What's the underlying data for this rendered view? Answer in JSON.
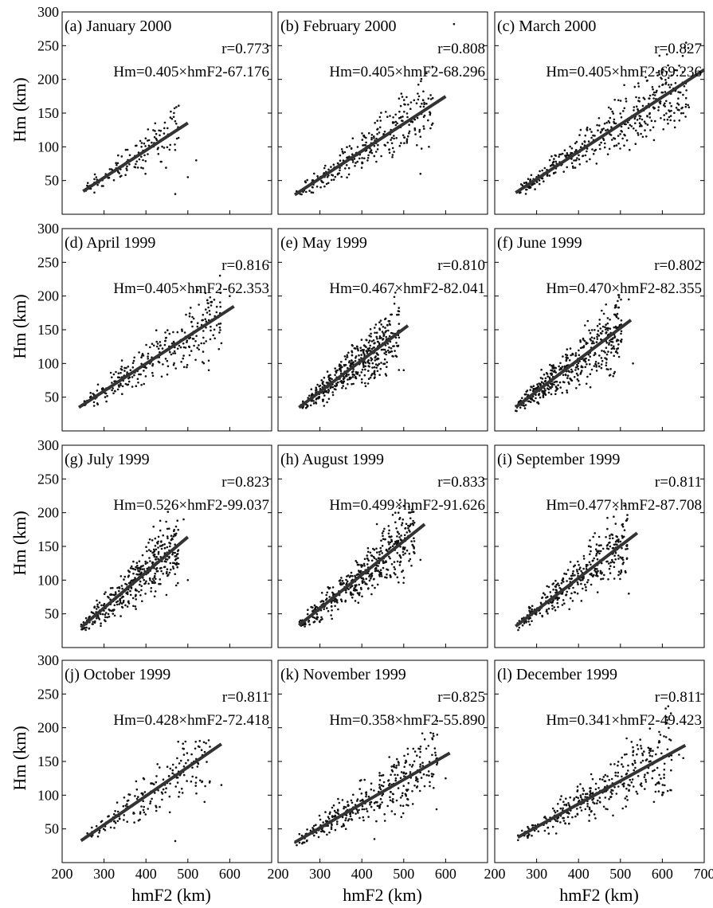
{
  "figure": {
    "x_axis_label": "hmF2 (km)",
    "y_axis_label": "Hm (km)"
  },
  "chart_data": [
    {
      "type": "scatter",
      "title": "(a) January 2000",
      "r_label": "r=0.773",
      "fit_label": "Hm=0.405×hmF2-67.176",
      "slope": 0.405,
      "intercept": -67.176,
      "fit_range": [
        250,
        500
      ],
      "n_points": 140,
      "spread": 14,
      "seed": 11,
      "outliers": [
        [
          520,
          80
        ],
        [
          470,
          30
        ],
        [
          500,
          55
        ]
      ],
      "xlim": [
        200,
        700
      ],
      "xticks": [
        200,
        300,
        400,
        500,
        600
      ],
      "ylim": [
        0,
        300
      ],
      "yticks": [
        50,
        100,
        150,
        200,
        250,
        300
      ]
    },
    {
      "type": "scatter",
      "title": "(b) February 2000",
      "r_label": "r=0.808",
      "fit_label": "Hm=0.405×hmF2-68.296",
      "slope": 0.405,
      "intercept": -68.296,
      "fit_range": [
        240,
        600
      ],
      "n_points": 300,
      "spread": 18,
      "seed": 23,
      "outliers": [
        [
          620,
          282
        ],
        [
          540,
          60
        ],
        [
          560,
          100
        ]
      ],
      "xlim": [
        200,
        700
      ],
      "xticks": [
        200,
        300,
        400,
        500,
        600
      ],
      "ylim": [
        0,
        300
      ],
      "yticks": [
        50,
        100,
        150,
        200,
        250,
        300
      ]
    },
    {
      "type": "scatter",
      "title": "(c) March 2000",
      "r_label": "r=0.827",
      "fit_label": "Hm=0.405×hmF2-69.236",
      "slope": 0.405,
      "intercept": -69.236,
      "fit_range": [
        250,
        700
      ],
      "n_points": 400,
      "spread": 20,
      "seed": 37,
      "outliers": [
        [
          600,
          210
        ],
        [
          650,
          150
        ],
        [
          580,
          110
        ]
      ],
      "xlim": [
        200,
        700
      ],
      "xticks": [
        200,
        300,
        400,
        500,
        600,
        700
      ],
      "ylim": [
        0,
        300
      ],
      "yticks": [
        50,
        100,
        150,
        200,
        250,
        300
      ]
    },
    {
      "type": "scatter",
      "title": "(d) April 1999",
      "r_label": "r=0.816",
      "fit_label": "Hm=0.405×hmF2-62.353",
      "slope": 0.405,
      "intercept": -62.353,
      "fit_range": [
        240,
        610
      ],
      "n_points": 300,
      "spread": 18,
      "seed": 41,
      "outliers": [
        [
          600,
          200
        ],
        [
          580,
          130
        ],
        [
          550,
          90
        ]
      ],
      "xlim": [
        200,
        700
      ],
      "xticks": [
        200,
        300,
        400,
        500,
        600
      ],
      "ylim": [
        0,
        300
      ],
      "yticks": [
        50,
        100,
        150,
        200,
        250,
        300
      ]
    },
    {
      "type": "scatter",
      "title": "(e) May 1999",
      "r_label": "r=0.810",
      "fit_label": "Hm=0.467×hmF2-82.041",
      "slope": 0.467,
      "intercept": -82.041,
      "fit_range": [
        250,
        510
      ],
      "n_points": 450,
      "spread": 18,
      "seed": 53,
      "outliers": [
        [
          480,
          205
        ],
        [
          500,
          90
        ]
      ],
      "xlim": [
        200,
        700
      ],
      "xticks": [
        200,
        300,
        400,
        500,
        600
      ],
      "ylim": [
        0,
        300
      ],
      "yticks": [
        50,
        100,
        150,
        200,
        250,
        300
      ]
    },
    {
      "type": "scatter",
      "title": "(f) June 1999",
      "r_label": "r=0.802",
      "fit_label": "Hm=0.470×hmF2-82.355",
      "slope": 0.47,
      "intercept": -82.355,
      "fit_range": [
        250,
        525
      ],
      "n_points": 450,
      "spread": 20,
      "seed": 67,
      "outliers": [
        [
          520,
          195
        ],
        [
          530,
          100
        ]
      ],
      "xlim": [
        200,
        700
      ],
      "xticks": [
        200,
        300,
        400,
        500,
        600
      ],
      "ylim": [
        0,
        300
      ],
      "yticks": [
        50,
        100,
        150,
        200,
        250,
        300
      ]
    },
    {
      "type": "scatter",
      "title": "(g) July 1999",
      "r_label": "r=0.823",
      "fit_label": "Hm=0.526×hmF2-99.037",
      "slope": 0.526,
      "intercept": -99.037,
      "fit_range": [
        245,
        500
      ],
      "n_points": 400,
      "spread": 20,
      "seed": 71,
      "outliers": [
        [
          490,
          190
        ],
        [
          500,
          100
        ]
      ],
      "xlim": [
        200,
        700
      ],
      "xticks": [
        200,
        300,
        400,
        500,
        600
      ],
      "ylim": [
        0,
        300
      ],
      "yticks": [
        50,
        100,
        150,
        200,
        250,
        300
      ]
    },
    {
      "type": "scatter",
      "title": "(h) August 1999",
      "r_label": "r=0.833",
      "fit_label": "Hm=0.499×hmF2-91.626",
      "slope": 0.499,
      "intercept": -91.626,
      "fit_range": [
        250,
        550
      ],
      "n_points": 450,
      "spread": 20,
      "seed": 83,
      "outliers": [
        [
          500,
          210
        ],
        [
          540,
          130
        ],
        [
          480,
          200
        ]
      ],
      "xlim": [
        200,
        700
      ],
      "xticks": [
        200,
        300,
        400,
        500,
        600
      ],
      "ylim": [
        0,
        300
      ],
      "yticks": [
        50,
        100,
        150,
        200,
        250,
        300
      ]
    },
    {
      "type": "scatter",
      "title": "(i) September 1999",
      "r_label": "r=0.811",
      "fit_label": "Hm=0.477×hmF2-87.708",
      "slope": 0.477,
      "intercept": -87.708,
      "fit_range": [
        250,
        540
      ],
      "n_points": 350,
      "spread": 18,
      "seed": 97,
      "outliers": [
        [
          490,
          205
        ],
        [
          520,
          80
        ]
      ],
      "xlim": [
        200,
        700
      ],
      "xticks": [
        200,
        300,
        400,
        500,
        600
      ],
      "ylim": [
        0,
        300
      ],
      "yticks": [
        50,
        100,
        150,
        200,
        250,
        300
      ]
    },
    {
      "type": "scatter",
      "title": "(j) October 1999",
      "r_label": "r=0.811",
      "fit_label": "Hm=0.428×hmF2-72.418",
      "slope": 0.428,
      "intercept": -72.418,
      "fit_range": [
        245,
        580
      ],
      "n_points": 200,
      "spread": 18,
      "seed": 101,
      "outliers": [
        [
          580,
          115
        ],
        [
          540,
          90
        ],
        [
          470,
          32
        ]
      ],
      "xlim": [
        200,
        700
      ],
      "xticks": [
        200,
        300,
        400,
        500,
        600
      ],
      "ylim": [
        0,
        300
      ],
      "yticks": [
        50,
        100,
        150,
        200,
        250,
        300
      ]
    },
    {
      "type": "scatter",
      "title": "(k) November 1999",
      "r_label": "r=0.825",
      "fit_label": "Hm=0.358×hmF2-55.890",
      "slope": 0.358,
      "intercept": -55.89,
      "fit_range": [
        240,
        610
      ],
      "n_points": 350,
      "spread": 20,
      "seed": 113,
      "outliers": [
        [
          580,
          210
        ],
        [
          600,
          125
        ],
        [
          430,
          35
        ]
      ],
      "xlim": [
        200,
        700
      ],
      "xticks": [
        200,
        300,
        400,
        500,
        600
      ],
      "ylim": [
        0,
        300
      ],
      "yticks": [
        50,
        100,
        150,
        200,
        250,
        300
      ]
    },
    {
      "type": "scatter",
      "title": "(l) December 1999",
      "r_label": "r=0.811",
      "fit_label": "Hm=0.341×hmF2-49.423",
      "slope": 0.341,
      "intercept": -49.423,
      "fit_range": [
        255,
        655
      ],
      "n_points": 350,
      "spread": 20,
      "seed": 127,
      "outliers": [
        [
          640,
          160
        ],
        [
          580,
          90
        ],
        [
          650,
          155
        ]
      ],
      "xlim": [
        200,
        700
      ],
      "xticks": [
        200,
        300,
        400,
        500,
        600,
        700
      ],
      "ylim": [
        0,
        300
      ],
      "yticks": [
        50,
        100,
        150,
        200,
        250,
        300
      ]
    }
  ]
}
